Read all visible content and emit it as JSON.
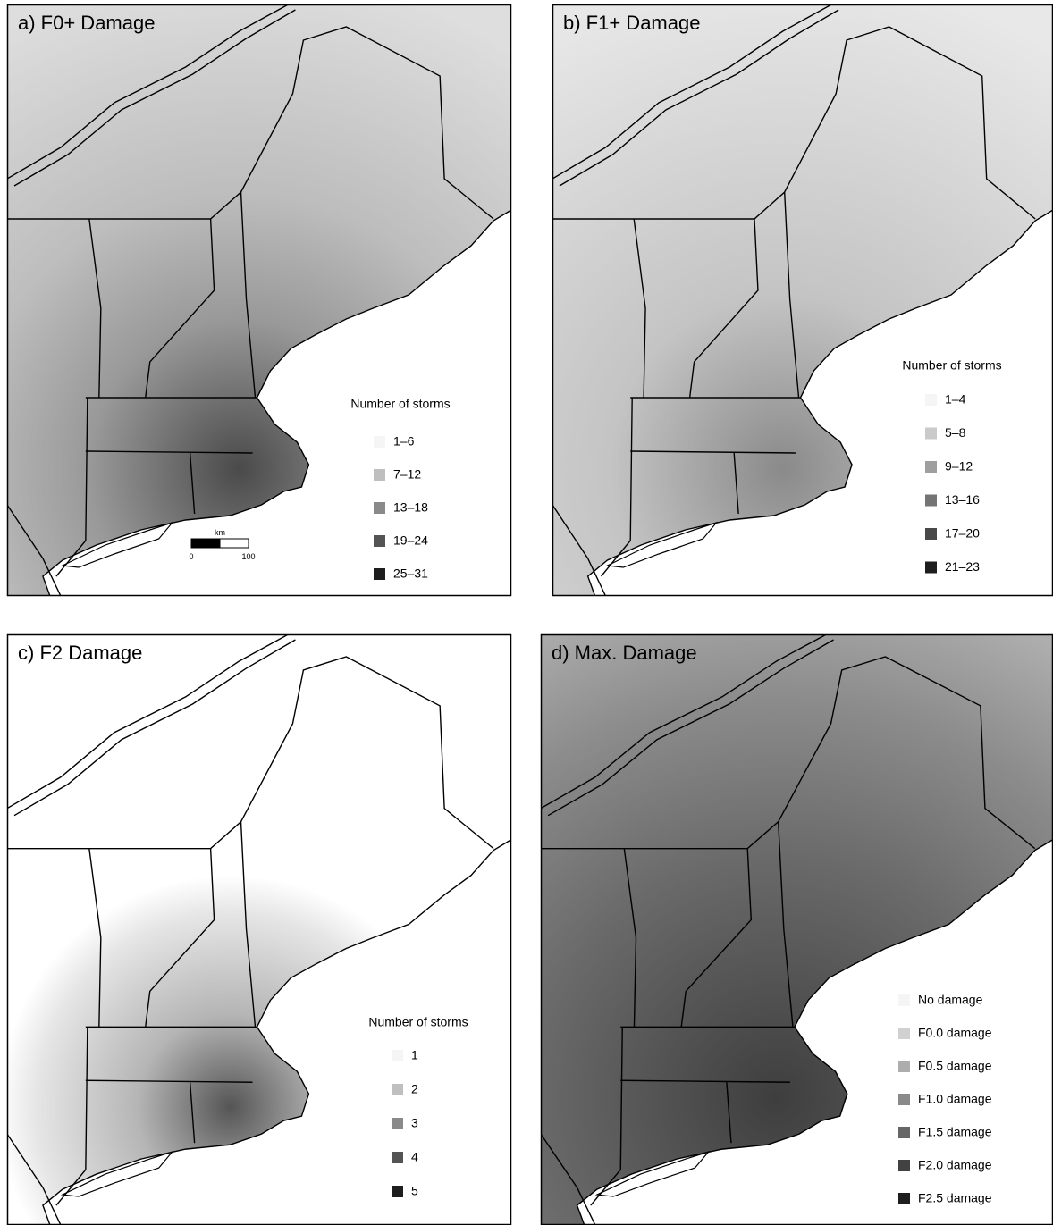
{
  "panels": [
    {
      "title": "a) F0+ Damage",
      "legend_title": "Number of storms",
      "legend": [
        "1–6",
        "7–12",
        "13–18",
        "19–24",
        "25–31"
      ],
      "scale_bar": {
        "unit": "km",
        "labels": [
          0,
          100
        ]
      }
    },
    {
      "title": "b) F1+ Damage",
      "legend_title": "Number of storms",
      "legend": [
        "1–4",
        "5–8",
        "9–12",
        "13–16",
        "17–20",
        "21–23"
      ]
    },
    {
      "title": "c) F2 Damage",
      "legend_title": "Number of storms",
      "legend": [
        "1",
        "2",
        "3",
        "4",
        "5"
      ]
    },
    {
      "title": "d) Max. Damage",
      "legend": [
        "No damage",
        "F0.0 damage",
        "F0.5 damage",
        "F1.0 damage",
        "F1.5 damage",
        "F2.0 damage",
        "F2.5 damage"
      ]
    }
  ]
}
